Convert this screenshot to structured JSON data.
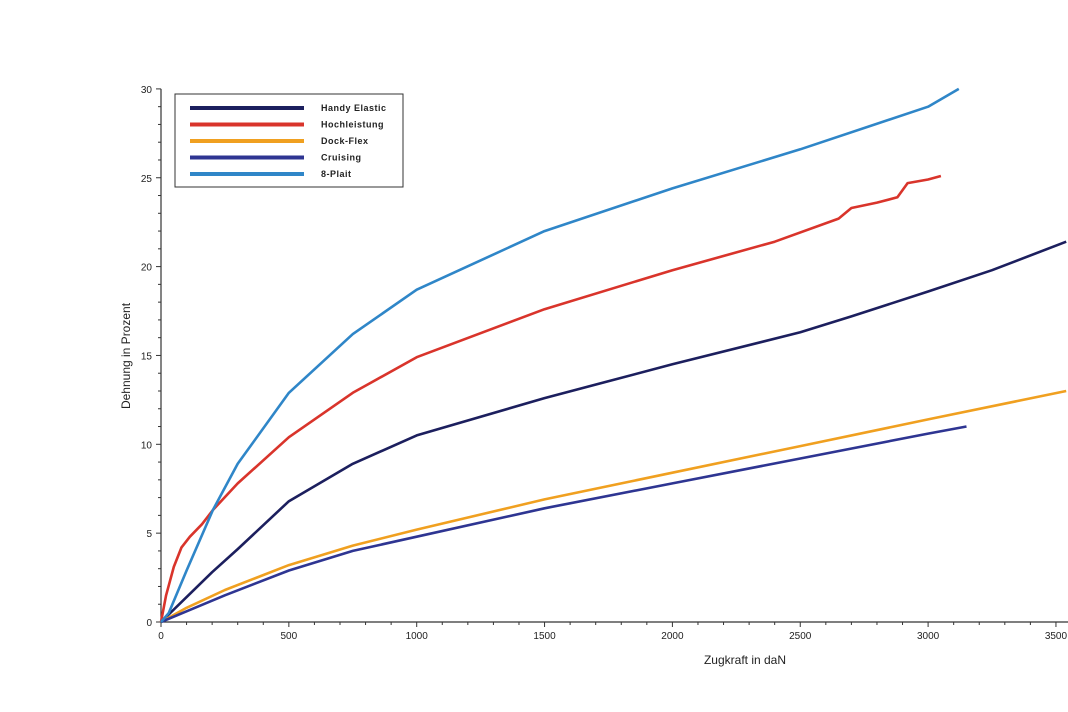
{
  "chart_data": {
    "type": "line",
    "title": "",
    "xlabel": "Zugkraft in daN",
    "ylabel": "Dehnung in Prozent",
    "xlim": [
      0,
      3540
    ],
    "ylim": [
      0,
      30
    ],
    "xticks": [
      "0",
      "500",
      "1000",
      "1500",
      "2000",
      "2500",
      "3000",
      "3500"
    ],
    "yticks": [
      "0",
      "5",
      "10",
      "15",
      "20",
      "25",
      "30"
    ],
    "grid": false,
    "legend_position": "top-left",
    "series": [
      {
        "name": "Handy Elastic",
        "color": "#1c1f5e",
        "x": [
          0,
          100,
          200,
          300,
          500,
          750,
          1000,
          1500,
          2000,
          2500,
          2700,
          3000,
          3250,
          3540
        ],
        "y": [
          0,
          1.4,
          2.8,
          4.1,
          6.8,
          8.9,
          10.5,
          12.6,
          14.5,
          16.3,
          17.2,
          18.6,
          19.8,
          21.4
        ]
      },
      {
        "name": "Hochleistung",
        "color": "#d9342b",
        "x": [
          0,
          20,
          50,
          80,
          113,
          160,
          203,
          300,
          500,
          750,
          1000,
          1500,
          2000,
          2400,
          2650,
          2700,
          2800,
          2880,
          2920,
          3000,
          3050
        ],
        "y": [
          0,
          1.5,
          3.1,
          4.2,
          4.8,
          5.5,
          6.3,
          7.8,
          10.4,
          12.9,
          14.9,
          17.6,
          19.8,
          21.4,
          22.7,
          23.3,
          23.6,
          23.9,
          24.7,
          24.9,
          25.1
        ]
      },
      {
        "name": "Dock-Flex",
        "color": "#f0a020",
        "x": [
          0,
          100,
          250,
          500,
          750,
          1000,
          1500,
          2000,
          2500,
          3000,
          3540
        ],
        "y": [
          0,
          0.8,
          1.8,
          3.2,
          4.3,
          5.2,
          6.9,
          8.4,
          9.9,
          11.4,
          13.0
        ]
      },
      {
        "name": "Cruising",
        "color": "#2e3592",
        "x": [
          0,
          100,
          250,
          500,
          750,
          1000,
          1500,
          2000,
          2500,
          3000,
          3150
        ],
        "y": [
          0,
          0.6,
          1.5,
          2.9,
          4.0,
          4.8,
          6.4,
          7.8,
          9.2,
          10.6,
          11.0
        ]
      },
      {
        "name": "8-Plait",
        "color": "#2f86c8",
        "x": [
          0,
          30,
          100,
          203,
          300,
          500,
          750,
          1000,
          1500,
          2000,
          2500,
          3000,
          3120
        ],
        "y": [
          0,
          0.5,
          2.9,
          6.3,
          8.9,
          12.9,
          16.2,
          18.7,
          22.0,
          24.4,
          26.6,
          29.0,
          30.0
        ]
      }
    ]
  }
}
